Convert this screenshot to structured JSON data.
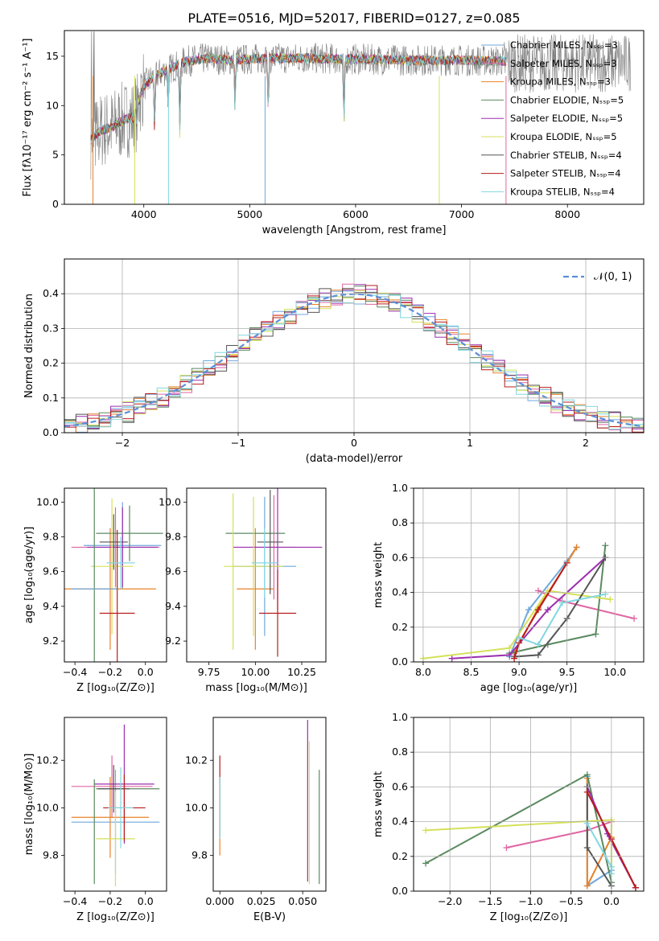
{
  "title": "PLATE=0516, MJD=52017, FIBERID=0127, z=0.085",
  "colors": {
    "chabrier_miles": "#6fa8dc",
    "salpeter_miles": "#e066a3",
    "kroupa_miles": "#e8822a",
    "chabrier_elodie": "#5b8a60",
    "salpeter_elodie": "#9b2fae",
    "kroupa_elodie": "#d4e157",
    "chabrier_stelib": "#555555",
    "salpeter_stelib": "#b71c1c",
    "kroupa_stelib": "#80d8e0",
    "data": "#808080",
    "gaussian": "#5b8fd9"
  },
  "chart_data": [
    {
      "id": "spectrum",
      "type": "line",
      "xlabel": "wavelength [Angstrom, rest frame]",
      "ylabel": "Flux [fλ10⁻¹⁷ erg cm⁻² s⁻¹ A⁻¹]",
      "xlim": [
        3250,
        8720
      ],
      "ylim": [
        0,
        17.6
      ],
      "xticks": [
        "4000",
        "5000",
        "6000",
        "7000",
        "8000"
      ],
      "yticks": [
        "0",
        "5",
        "10",
        "15"
      ],
      "legend": [
        {
          "label": "Chabrier MILES, Nₛₛₚ=3",
          "color_key": "chabrier_miles"
        },
        {
          "label": "Salpeter MILES, Nₛₛₚ=3",
          "color_key": "salpeter_miles"
        },
        {
          "label": "Kroupa MILES, Nₛₛₚ=3",
          "color_key": "kroupa_miles"
        },
        {
          "label": "Chabrier ELODIE, Nₛₛₚ=5",
          "color_key": "chabrier_elodie"
        },
        {
          "label": "Salpeter ELODIE, Nₛₛₚ=5",
          "color_key": "salpeter_elodie"
        },
        {
          "label": "Kroupa ELODIE, Nₛₛₚ=5",
          "color_key": "kroupa_elodie"
        },
        {
          "label": "Chabrier STELIB, Nₛₛₚ=4",
          "color_key": "chabrier_stelib"
        },
        {
          "label": "Salpeter STELIB, Nₛₛₚ=4",
          "color_key": "salpeter_stelib"
        },
        {
          "label": "Kroupa STELIB, Nₛₛₚ=4",
          "color_key": "kroupa_stelib"
        }
      ],
      "continuum": [
        [
          3500,
          6.5
        ],
        [
          3600,
          7.5
        ],
        [
          3700,
          7.8
        ],
        [
          3800,
          8.5
        ],
        [
          3900,
          8.8
        ],
        [
          4000,
          12.0
        ],
        [
          4100,
          13.0
        ],
        [
          4200,
          13.5
        ],
        [
          4400,
          14.5
        ],
        [
          4600,
          14.8
        ],
        [
          4800,
          14.6
        ],
        [
          5000,
          14.7
        ],
        [
          5200,
          14.8
        ],
        [
          5500,
          14.8
        ],
        [
          6000,
          14.7
        ],
        [
          6500,
          14.6
        ],
        [
          7000,
          14.6
        ],
        [
          7400,
          14.5
        ]
      ],
      "absorption_dips": [
        [
          3934,
          2
        ],
        [
          4102,
          6
        ],
        [
          4230,
          4
        ],
        [
          4340,
          7
        ],
        [
          4861,
          5
        ],
        [
          5175,
          6
        ],
        [
          5890,
          7
        ]
      ],
      "vertical_spikes": [
        [
          3520,
          "kroupa_miles"
        ],
        [
          3915,
          "kroupa_elodie"
        ],
        [
          4233,
          "kroupa_stelib"
        ],
        [
          5145,
          "chabrier_miles"
        ],
        [
          6790,
          "kroupa_elodie"
        ],
        [
          7420,
          "salpeter_miles"
        ]
      ]
    },
    {
      "id": "residual_distribution",
      "type": "line",
      "xlabel": "(data-model)/error",
      "ylabel": "Normed distribution",
      "xlim": [
        -2.5,
        2.5
      ],
      "ylim": [
        0,
        0.5
      ],
      "xticks": [
        "−2",
        "−1",
        "0",
        "1",
        "2"
      ],
      "yticks": [
        "0.0",
        "0.1",
        "0.2",
        "0.3",
        "0.4"
      ],
      "grid": true,
      "legend_placement": "top-right",
      "legend": [
        {
          "label": "𝒩(0, 1)",
          "color_key": "gaussian"
        }
      ]
    },
    {
      "id": "age_vs_Z",
      "type": "scatter",
      "xlabel": "Z [log₁₀(Z/Z⊙)]",
      "ylabel": "age  [log₁₀(age/yr)]",
      "xlim": [
        -0.46,
        0.12
      ],
      "ylim": [
        9.08,
        10.08
      ],
      "xticks": [
        "−0.4",
        "−0.2",
        "0.0"
      ],
      "yticks": [
        "9.2",
        "9.4",
        "9.6",
        "9.8",
        "10.0"
      ],
      "points": [
        {
          "x": -0.13,
          "y": 9.75,
          "xerr": 0.22,
          "yerr": 0.25,
          "color_key": "chabrier_miles"
        },
        {
          "x": -0.17,
          "y": 9.74,
          "xerr": 0.25,
          "yerr": 0.23,
          "color_key": "salpeter_miles"
        },
        {
          "x": -0.2,
          "y": 9.5,
          "xerr": 0.26,
          "yerr": 0.35,
          "color_key": "kroupa_miles"
        },
        {
          "x": -0.09,
          "y": 9.82,
          "xerr": 0.19,
          "yerr": 0.16,
          "color_key": "chabrier_elodie"
        },
        {
          "x": -0.13,
          "y": 9.74,
          "xerr": 0.2,
          "yerr": 0.23,
          "color_key": "salpeter_elodie"
        },
        {
          "x": -0.19,
          "y": 9.63,
          "xerr": 0.12,
          "yerr": 0.39,
          "color_key": "kroupa_elodie"
        },
        {
          "x": -0.18,
          "y": 9.77,
          "xerr": 0.08,
          "yerr": 0.16,
          "color_key": "chabrier_stelib"
        },
        {
          "x": -0.16,
          "y": 9.36,
          "xerr": 0.1,
          "yerr": 0.48,
          "color_key": "salpeter_stelib"
        },
        {
          "x": -0.14,
          "y": 9.65,
          "xerr": 0.08,
          "yerr": 0.15,
          "color_key": "kroupa_stelib"
        },
        {
          "x": -0.29,
          "y": 9.51,
          "xerr": 0.0,
          "yerr": 0.6,
          "color_key": "chabrier_elodie"
        },
        {
          "x": -0.29,
          "y": 9.5,
          "xerr": 0.13,
          "yerr": 0.0,
          "color_key": "chabrier_miles"
        }
      ]
    },
    {
      "id": "age_vs_mass",
      "type": "scatter",
      "xlabel": "mass [log₁₀(M/M⊙)]",
      "ylabel": "",
      "xlim": [
        9.63,
        10.38
      ],
      "ylim": [
        9.08,
        10.08
      ],
      "xticks": [
        "9.75",
        "10.00",
        "10.25"
      ],
      "yticks": [
        "9.2",
        "9.4",
        "9.6",
        "9.8",
        "10.0"
      ],
      "points": [
        {
          "x": 10.05,
          "y": 9.63,
          "xerr": 0.17,
          "yerr": 0.4,
          "color_key": "chabrier_miles"
        },
        {
          "x": 10.1,
          "y": 9.74,
          "xerr": 0.12,
          "yerr": 0.3,
          "color_key": "salpeter_miles"
        },
        {
          "x": 10.0,
          "y": 9.5,
          "xerr": 0.1,
          "yerr": 0.35,
          "color_key": "kroupa_miles"
        },
        {
          "x": 10.0,
          "y": 9.82,
          "xerr": 0.16,
          "yerr": 0.0,
          "color_key": "chabrier_elodie"
        },
        {
          "x": 10.12,
          "y": 9.74,
          "xerr": 0.24,
          "yerr": 0.36,
          "color_key": "salpeter_elodie"
        },
        {
          "x": 9.99,
          "y": 9.63,
          "xerr": 0.16,
          "yerr": 0.4,
          "color_key": "kroupa_elodie"
        },
        {
          "x": 10.08,
          "y": 9.77,
          "xerr": 0.07,
          "yerr": 0.3,
          "color_key": "chabrier_stelib"
        },
        {
          "x": 10.12,
          "y": 9.36,
          "xerr": 0.1,
          "yerr": 0.25,
          "color_key": "salpeter_stelib"
        },
        {
          "x": 10.05,
          "y": 9.65,
          "xerr": 0.07,
          "yerr": 0.2,
          "color_key": "kroupa_stelib"
        },
        {
          "x": 9.88,
          "y": 9.6,
          "xerr": 0.0,
          "yerr": 0.45,
          "color_key": "kroupa_elodie"
        }
      ]
    },
    {
      "id": "weight_vs_age",
      "type": "line",
      "xlabel": "age  [log₁₀(age/yr)]",
      "ylabel": "mass weight",
      "xlim": [
        7.9,
        10.3
      ],
      "ylim": [
        0,
        1.0
      ],
      "xticks": [
        "8.0",
        "8.5",
        "9.0",
        "9.5",
        "10.0"
      ],
      "yticks": [
        "0.0",
        "0.2",
        "0.4",
        "0.6",
        "0.8",
        "1.0"
      ],
      "grid": true,
      "series": [
        {
          "color_key": "chabrier_miles",
          "x": [
            8.9,
            9.1,
            9.5,
            9.6
          ],
          "y": [
            0.03,
            0.3,
            0.58,
            0.66
          ]
        },
        {
          "color_key": "salpeter_miles",
          "x": [
            9.2,
            9.45,
            10.2
          ],
          "y": [
            0.41,
            0.35,
            0.25
          ]
        },
        {
          "color_key": "kroupa_miles",
          "x": [
            8.95,
            9.2,
            9.5,
            9.6
          ],
          "y": [
            0.05,
            0.31,
            0.57,
            0.66
          ]
        },
        {
          "color_key": "chabrier_elodie",
          "x": [
            8.9,
            9.3,
            9.8,
            9.9
          ],
          "y": [
            0.05,
            0.1,
            0.16,
            0.67
          ]
        },
        {
          "color_key": "salpeter_elodie",
          "x": [
            8.3,
            8.9,
            9.3,
            9.9
          ],
          "y": [
            0.02,
            0.04,
            0.3,
            0.6
          ]
        },
        {
          "color_key": "kroupa_elodie",
          "x": [
            8.0,
            8.9,
            9.3,
            9.95
          ],
          "y": [
            0.02,
            0.08,
            0.41,
            0.36
          ]
        },
        {
          "color_key": "chabrier_stelib",
          "x": [
            8.95,
            9.2,
            9.5,
            9.9
          ],
          "y": [
            0.03,
            0.04,
            0.25,
            0.6
          ]
        },
        {
          "color_key": "salpeter_stelib",
          "x": [
            8.95,
            9.0,
            9.2,
            9.5
          ],
          "y": [
            0.02,
            0.11,
            0.3,
            0.57
          ]
        },
        {
          "color_key": "kroupa_stelib",
          "x": [
            9.0,
            9.2,
            9.45,
            9.9
          ],
          "y": [
            0.14,
            0.1,
            0.34,
            0.39
          ]
        }
      ]
    },
    {
      "id": "mass_vs_Z",
      "type": "scatter",
      "xlabel": "Z [log₁₀(Z/Z⊙)]",
      "ylabel": "mass [log₁₀(M/M⊙)]",
      "xlim": [
        -0.46,
        0.12
      ],
      "ylim": [
        9.65,
        10.38
      ],
      "xticks": [
        "−0.4",
        "−0.2",
        "0.0"
      ],
      "yticks": [
        "9.8",
        "10.0",
        "10.2"
      ],
      "points": [
        {
          "x": -0.17,
          "y": 9.94,
          "xerr": 0.25,
          "yerr": 0.22,
          "color_key": "chabrier_miles"
        },
        {
          "x": -0.19,
          "y": 10.09,
          "xerr": 0.23,
          "yerr": 0.13,
          "color_key": "salpeter_miles"
        },
        {
          "x": -0.2,
          "y": 9.96,
          "xerr": 0.22,
          "yerr": 0.17,
          "color_key": "kroupa_miles"
        },
        {
          "x": -0.1,
          "y": 10.08,
          "xerr": 0.18,
          "yerr": 0.0,
          "color_key": "chabrier_elodie"
        },
        {
          "x": -0.12,
          "y": 10.1,
          "xerr": 0.17,
          "yerr": 0.25,
          "color_key": "salpeter_elodie"
        },
        {
          "x": -0.17,
          "y": 9.87,
          "xerr": 0.11,
          "yerr": 0.2,
          "color_key": "kroupa_elodie"
        },
        {
          "x": -0.18,
          "y": 10.08,
          "xerr": 0.09,
          "yerr": 0.1,
          "color_key": "chabrier_stelib"
        },
        {
          "x": -0.12,
          "y": 10.0,
          "xerr": 0.12,
          "yerr": 0.14,
          "color_key": "salpeter_stelib"
        },
        {
          "x": -0.14,
          "y": 10.0,
          "xerr": 0.07,
          "yerr": 0.17,
          "color_key": "kroupa_stelib"
        },
        {
          "x": -0.29,
          "y": 9.9,
          "xerr": 0.0,
          "yerr": 0.22,
          "color_key": "chabrier_elodie"
        }
      ]
    },
    {
      "id": "mass_vs_ebv",
      "type": "scatter",
      "xlabel": "E(B-V)",
      "ylabel": "",
      "xlim": [
        -0.004,
        0.064
      ],
      "ylim": [
        9.65,
        10.38
      ],
      "xticks": [
        "0.000",
        "0.025",
        "0.050"
      ],
      "yticks": [
        "9.8",
        "10.0",
        "10.2"
      ],
      "points": [
        {
          "x": 0.0,
          "y": 10.05,
          "xerr": 0,
          "yerr": 0.17,
          "color_key": "salpeter_stelib"
        },
        {
          "x": 0.0,
          "y": 9.95,
          "xerr": 0,
          "yerr": 0.15,
          "color_key": "kroupa_miles"
        },
        {
          "x": 0.0,
          "y": 10.0,
          "xerr": 0,
          "yerr": 0.13,
          "color_key": "kroupa_stelib"
        },
        {
          "x": 0.053,
          "y": 10.03,
          "xerr": 0,
          "yerr": 0.34,
          "color_key": "salpeter_elodie"
        },
        {
          "x": 0.054,
          "y": 9.98,
          "xerr": 0,
          "yerr": 0.3,
          "color_key": "kroupa_elodie"
        },
        {
          "x": 0.06,
          "y": 9.92,
          "xerr": 0,
          "yerr": 0.24,
          "color_key": "chabrier_elodie"
        }
      ]
    },
    {
      "id": "weight_vs_Z",
      "type": "line",
      "xlabel": "Z [log₁₀(Z/Z⊙)]",
      "ylabel": "mass weight",
      "xlim": [
        -2.45,
        0.4
      ],
      "ylim": [
        0,
        1.0
      ],
      "xticks": [
        "−2.0",
        "−1.5",
        "−1.0",
        "−0.5",
        "0.0"
      ],
      "yticks": [
        "0.0",
        "0.2",
        "0.4",
        "0.6",
        "0.8",
        "1.0"
      ],
      "grid": true,
      "series": [
        {
          "color_key": "chabrier_miles",
          "x": [
            -0.3,
            -0.3,
            0.0
          ],
          "y": [
            0.66,
            0.03,
            0.12
          ]
        },
        {
          "color_key": "salpeter_miles",
          "x": [
            -1.3,
            -0.3,
            0.0
          ],
          "y": [
            0.25,
            0.35,
            0.4
          ]
        },
        {
          "color_key": "kroupa_miles",
          "x": [
            -0.3,
            -0.3,
            0.0
          ],
          "y": [
            0.65,
            0.03,
            0.31
          ]
        },
        {
          "color_key": "chabrier_elodie",
          "x": [
            -2.3,
            -0.3,
            0.0
          ],
          "y": [
            0.16,
            0.67,
            0.05
          ]
        },
        {
          "color_key": "salpeter_elodie",
          "x": [
            -0.3,
            -0.05,
            0.3
          ],
          "y": [
            0.6,
            0.33,
            0.02
          ]
        },
        {
          "color_key": "kroupa_elodie",
          "x": [
            -2.3,
            0.0,
            0.0
          ],
          "y": [
            0.35,
            0.41,
            0.14
          ]
        },
        {
          "color_key": "chabrier_stelib",
          "x": [
            -0.3,
            -0.3,
            0.0
          ],
          "y": [
            0.6,
            0.25,
            0.03
          ]
        },
        {
          "color_key": "salpeter_stelib",
          "x": [
            -0.3,
            0.0,
            0.3
          ],
          "y": [
            0.57,
            0.3,
            0.02
          ]
        },
        {
          "color_key": "kroupa_stelib",
          "x": [
            -0.3,
            0.0,
            0.0
          ],
          "y": [
            0.39,
            0.14,
            0.1
          ]
        }
      ]
    }
  ]
}
